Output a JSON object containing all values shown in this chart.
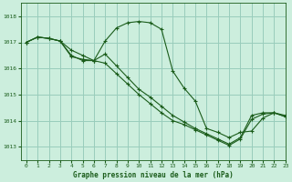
{
  "background_color": "#cceedd",
  "grid_color": "#99ccbb",
  "line_color": "#1a5c1a",
  "xlabel": "Graphe pression niveau de la mer (hPa)",
  "xlim": [
    -0.5,
    23
  ],
  "ylim": [
    1012.5,
    1018.5
  ],
  "yticks": [
    1013,
    1014,
    1015,
    1016,
    1017,
    1018
  ],
  "xticks": [
    0,
    1,
    2,
    3,
    4,
    5,
    6,
    7,
    8,
    9,
    10,
    11,
    12,
    13,
    14,
    15,
    16,
    17,
    18,
    19,
    20,
    21,
    22,
    23
  ],
  "series": [
    {
      "x": [
        0,
        1,
        2,
        3,
        4,
        5,
        6,
        7,
        8,
        9,
        10,
        11,
        12,
        13,
        14,
        15,
        16,
        17,
        18,
        19,
        20,
        21,
        22,
        23
      ],
      "y": [
        1017.0,
        1017.2,
        1017.15,
        1017.05,
        1016.45,
        1016.35,
        1016.3,
        1017.05,
        1017.55,
        1017.75,
        1017.8,
        1017.75,
        1017.5,
        1015.9,
        1015.25,
        1014.75,
        1013.7,
        1013.55,
        1013.35,
        1013.55,
        1013.6,
        1014.1,
        1014.3,
        1014.2
      ]
    },
    {
      "x": [
        0,
        1,
        2,
        3,
        4,
        5,
        6,
        7,
        8,
        9,
        10,
        11,
        12,
        13,
        14,
        15,
        16,
        17,
        18,
        19,
        20,
        21,
        22,
        23
      ],
      "y": [
        1017.0,
        1017.2,
        1017.15,
        1017.05,
        1016.5,
        1016.3,
        1016.3,
        1016.55,
        1016.1,
        1015.65,
        1015.2,
        1014.9,
        1014.55,
        1014.2,
        1013.95,
        1013.7,
        1013.5,
        1013.3,
        1013.1,
        1013.35,
        1014.2,
        1014.3,
        1014.3,
        1014.15
      ]
    },
    {
      "x": [
        0,
        1,
        2,
        3,
        4,
        5,
        6,
        7,
        8,
        9,
        10,
        11,
        12,
        13,
        14,
        15,
        16,
        17,
        18,
        19,
        20,
        21,
        22,
        23
      ],
      "y": [
        1017.0,
        1017.2,
        1017.15,
        1017.05,
        1016.7,
        1016.5,
        1016.3,
        1016.2,
        1015.8,
        1015.4,
        1015.0,
        1014.65,
        1014.3,
        1014.0,
        1013.85,
        1013.65,
        1013.45,
        1013.25,
        1013.05,
        1013.3,
        1014.05,
        1014.25,
        1014.3,
        1014.15
      ]
    }
  ]
}
